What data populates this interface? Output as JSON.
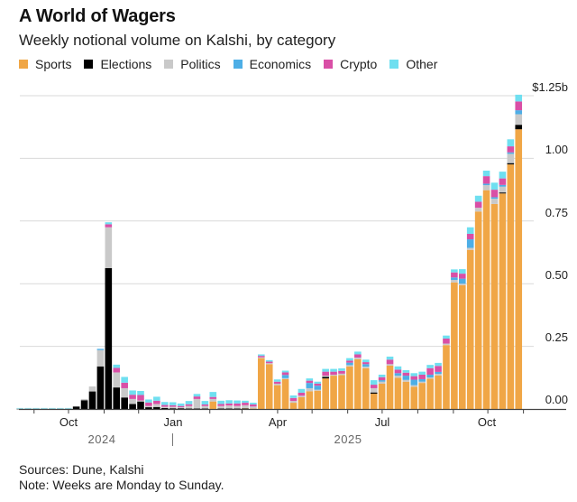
{
  "title": "A World of Wagers",
  "subtitle": "Weekly notional volume on Kalshi, by category",
  "footer": {
    "sources": "Sources: Dune, Kalshi",
    "note": "Note: Weeks are Monday to Sunday."
  },
  "chart_data": {
    "type": "bar",
    "stacked": true,
    "title": "A World of Wagers",
    "subtitle": "Weekly notional volume on Kalshi, by category",
    "ylabel": "",
    "xlabel": "",
    "unit": "$ billions",
    "ylim": [
      0,
      1.25
    ],
    "yticks": [
      0,
      0.25,
      0.5,
      0.75,
      1.0,
      1.25
    ],
    "ytick_labels": [
      "0.00",
      "0.25",
      "0.50",
      "0.75",
      "1.00",
      "$1.25b"
    ],
    "xtick_labels": [
      {
        "date": "2024-10-01",
        "label": "Oct"
      },
      {
        "date": "2025-01-01",
        "label": "Jan"
      },
      {
        "date": "2025-04-01",
        "label": "Apr"
      },
      {
        "date": "2025-07-01",
        "label": "Jul"
      },
      {
        "date": "2025-10-01",
        "label": "Oct"
      }
    ],
    "year_labels": [
      "2024",
      "2025"
    ],
    "grid": true,
    "legend_position": "top-left",
    "categories": [
      "2024-08-19",
      "2024-08-26",
      "2024-09-02",
      "2024-09-09",
      "2024-09-16",
      "2024-09-23",
      "2024-09-30",
      "2024-10-07",
      "2024-10-14",
      "2024-10-21",
      "2024-10-28",
      "2024-11-04",
      "2024-11-11",
      "2024-11-18",
      "2024-11-25",
      "2024-12-02",
      "2024-12-09",
      "2024-12-16",
      "2024-12-23",
      "2024-12-30",
      "2025-01-06",
      "2025-01-13",
      "2025-01-20",
      "2025-01-27",
      "2025-02-03",
      "2025-02-10",
      "2025-02-17",
      "2025-02-24",
      "2025-03-03",
      "2025-03-10",
      "2025-03-17",
      "2025-03-24",
      "2025-03-31",
      "2025-04-07",
      "2025-04-14",
      "2025-04-21",
      "2025-04-28",
      "2025-05-05",
      "2025-05-12",
      "2025-05-19",
      "2025-05-26",
      "2025-06-02",
      "2025-06-09",
      "2025-06-16",
      "2025-06-23",
      "2025-06-30",
      "2025-07-07",
      "2025-07-14",
      "2025-07-21",
      "2025-07-28",
      "2025-08-04",
      "2025-08-11",
      "2025-08-18",
      "2025-08-25",
      "2025-09-01",
      "2025-09-08",
      "2025-09-15",
      "2025-09-22",
      "2025-09-29",
      "2025-10-06",
      "2025-10-13",
      "2025-10-20",
      "2025-10-27"
    ],
    "series": [
      {
        "name": "Sports",
        "color": "#f0a646",
        "values": [
          0,
          0,
          0,
          0,
          0,
          0,
          0,
          0,
          0,
          0,
          0,
          0,
          0,
          0,
          0,
          0,
          0,
          0,
          0,
          0,
          0,
          0,
          0,
          0,
          0.03,
          0,
          0,
          0,
          0.002,
          0.002,
          0.203,
          0.179,
          0.095,
          0.119,
          0.025,
          0.047,
          0.071,
          0.073,
          0.122,
          0.133,
          0.135,
          0.17,
          0.199,
          0.163,
          0.061,
          0.101,
          0.173,
          0.125,
          0.109,
          0.089,
          0.104,
          0.121,
          0.134,
          0.255,
          0.505,
          0.494,
          0.635,
          0.788,
          0.873,
          0.818,
          0.86,
          0.976,
          1.116
        ]
      },
      {
        "name": "Elections",
        "color": "#000000",
        "values": [
          0.001,
          0.001,
          0.001,
          0.001,
          0.001,
          0.001,
          0.001,
          0.01,
          0.035,
          0.07,
          0.17,
          0.562,
          0.086,
          0.046,
          0.02,
          0.03,
          0.007,
          0.008,
          0.004,
          0.003,
          0.003,
          0.002,
          0.002,
          0.002,
          0,
          0.002,
          0.002,
          0.002,
          0.001,
          0,
          0,
          0,
          0,
          0,
          0,
          0,
          0,
          0,
          0.006,
          0,
          0,
          0,
          0,
          0,
          0.005,
          0,
          0,
          0,
          0,
          0,
          0,
          0,
          0,
          0,
          0,
          0,
          0,
          0,
          0,
          0,
          0.004,
          0.005,
          0.018
        ]
      },
      {
        "name": "Politics",
        "color": "#c9c9c9",
        "values": [
          0.001,
          0.001,
          0.001,
          0.001,
          0.001,
          0.001,
          0.001,
          0.002,
          0.005,
          0.02,
          0.065,
          0.163,
          0.06,
          0.037,
          0.02,
          0.004,
          0.005,
          0.012,
          0.005,
          0.006,
          0.004,
          0.01,
          0.038,
          0.01,
          0.01,
          0.01,
          0.012,
          0.01,
          0.012,
          0.008,
          0.003,
          0.004,
          0.006,
          0.004,
          0.007,
          0.006,
          0.012,
          0.004,
          0.005,
          0.004,
          0.006,
          0.005,
          0.006,
          0.006,
          0.017,
          0.008,
          0.006,
          0.008,
          0.007,
          0.006,
          0.005,
          0.005,
          0.006,
          0.006,
          0.01,
          0.006,
          0.008,
          0.015,
          0.02,
          0.021,
          0.023,
          0.037,
          0.042
        ]
      },
      {
        "name": "Economics",
        "color": "#4daee6",
        "values": [
          0,
          0,
          0,
          0,
          0,
          0,
          0,
          0,
          0,
          0,
          0.005,
          0,
          0,
          0,
          0,
          0,
          0,
          0,
          0,
          0,
          0,
          0,
          0,
          0,
          0,
          0,
          0,
          0,
          0,
          0,
          0,
          0,
          0,
          0.013,
          0,
          0,
          0.021,
          0.016,
          0,
          0,
          0,
          0.01,
          0,
          0.01,
          0,
          0.006,
          0,
          0.01,
          0.017,
          0.022,
          0.01,
          0.011,
          0.008,
          0,
          0.01,
          0.02,
          0.034,
          0,
          0.006,
          0.006,
          0.007,
          0.006,
          0.016
        ]
      },
      {
        "name": "Crypto",
        "color": "#d94fa6",
        "values": [
          0,
          0,
          0,
          0,
          0,
          0,
          0,
          0,
          0,
          0,
          0,
          0.012,
          0.018,
          0.022,
          0.017,
          0.022,
          0.014,
          0.013,
          0.007,
          0.006,
          0.005,
          0.007,
          0.01,
          0.006,
          0.008,
          0.008,
          0.008,
          0.01,
          0.01,
          0.008,
          0.006,
          0.006,
          0.008,
          0.01,
          0.012,
          0.012,
          0.009,
          0.008,
          0.016,
          0.012,
          0.011,
          0.008,
          0.013,
          0.008,
          0.014,
          0.012,
          0.018,
          0.014,
          0.012,
          0.014,
          0.018,
          0.026,
          0.024,
          0.02,
          0.02,
          0.02,
          0.022,
          0.024,
          0.03,
          0.03,
          0.026,
          0.024,
          0.035
        ]
      },
      {
        "name": "Other",
        "color": "#6fdff0",
        "values": [
          0.002,
          0.002,
          0.002,
          0.002,
          0.002,
          0.002,
          0.002,
          0,
          0,
          0,
          0,
          0.008,
          0.013,
          0.023,
          0.017,
          0.016,
          0.012,
          0.016,
          0.012,
          0.012,
          0.01,
          0.013,
          0.01,
          0.014,
          0.02,
          0.013,
          0.013,
          0.012,
          0.008,
          0.007,
          0.006,
          0.006,
          0.009,
          0.007,
          0.01,
          0.015,
          0.009,
          0.008,
          0.011,
          0.011,
          0.01,
          0.01,
          0.011,
          0.01,
          0.018,
          0.01,
          0.012,
          0.013,
          0.01,
          0.012,
          0.012,
          0.013,
          0.012,
          0.012,
          0.012,
          0.018,
          0.026,
          0.024,
          0.022,
          0.028,
          0.027,
          0.028,
          0.027
        ]
      }
    ]
  }
}
